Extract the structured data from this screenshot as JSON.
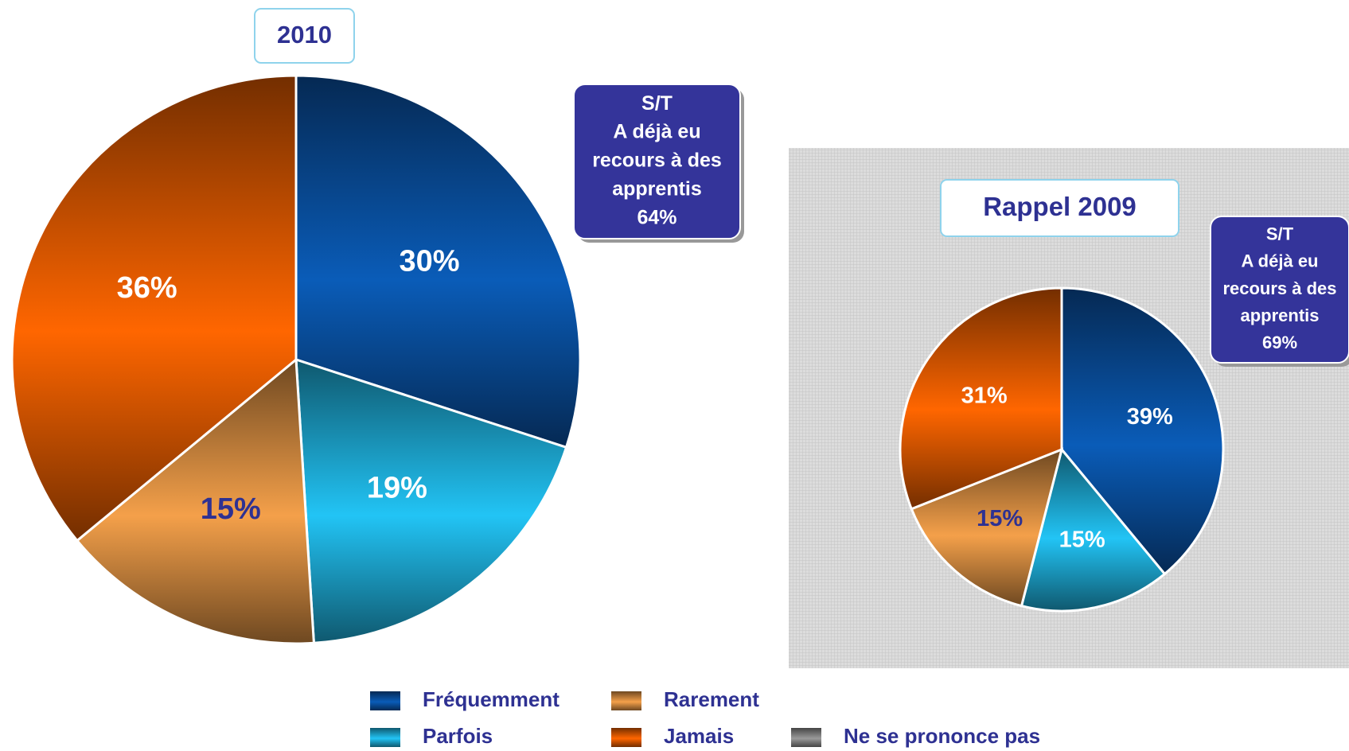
{
  "chart_data": [
    {
      "type": "pie",
      "title": "2010",
      "categories": [
        "Fréquemment",
        "Parfois",
        "Rarement",
        "Jamais",
        "Ne se prononce pas"
      ],
      "values": [
        30,
        19,
        15,
        36,
        0
      ],
      "value_labels": [
        "30%",
        "19%",
        "15%",
        "36%",
        null
      ],
      "colors": [
        "#0a5cb8",
        "#22c4f5",
        "#f4a04a",
        "#ff6600",
        "#9a9a9a"
      ],
      "value_label_colors": [
        "#ffffff",
        "#ffffff",
        "#2e3192",
        "#ffffff",
        null
      ],
      "annotation": {
        "lines": [
          "S/T",
          "A déjà eu",
          "recours à des",
          "apprentis"
        ],
        "value": 64,
        "value_label": "64%"
      }
    },
    {
      "type": "pie",
      "title": "Rappel 2009",
      "categories": [
        "Fréquemment",
        "Parfois",
        "Rarement",
        "Jamais",
        "Ne se prononce pas"
      ],
      "values": [
        39,
        15,
        15,
        31,
        0
      ],
      "value_labels": [
        "39%",
        "15%",
        "15%",
        "31%",
        null
      ],
      "colors": [
        "#0a5cb8",
        "#22c4f5",
        "#f4a04a",
        "#ff6600",
        "#9a9a9a"
      ],
      "value_label_colors": [
        "#ffffff",
        "#ffffff",
        "#2e3192",
        "#ffffff",
        null
      ],
      "annotation": {
        "lines": [
          "S/T",
          "A déjà eu",
          "recours à des",
          "apprentis"
        ],
        "value": 69,
        "value_label": "69%"
      }
    }
  ]
}
